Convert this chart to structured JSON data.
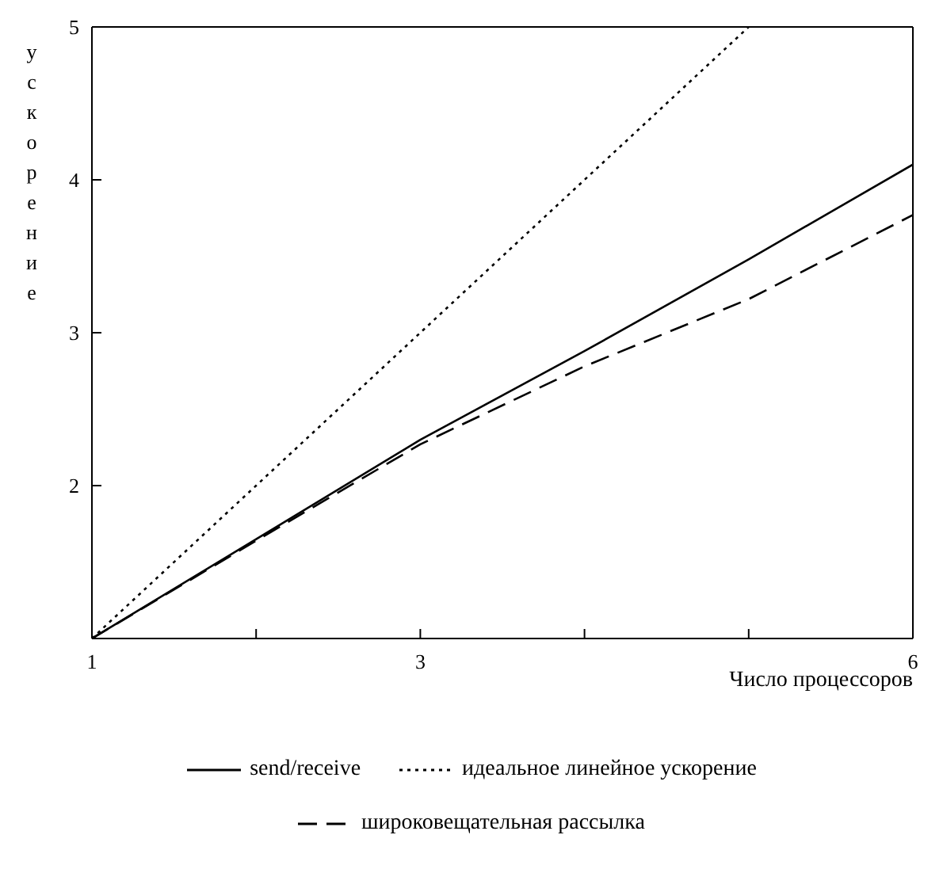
{
  "chart_data": {
    "type": "line",
    "xlabel": "Число процессоров",
    "ylabel": "ускорение",
    "x": [
      1,
      2,
      3,
      4,
      5,
      6
    ],
    "xlim": [
      1,
      6
    ],
    "ylim": [
      1,
      5
    ],
    "xticks": [
      1,
      {
        "value": 2,
        "label": null
      },
      3,
      {
        "value": 4,
        "label": null
      },
      {
        "value": 5,
        "label": null
      },
      6
    ],
    "yticks": [
      {
        "value": 1,
        "label": null
      },
      2,
      3,
      4,
      5
    ],
    "grid": false,
    "legend": "bottom",
    "marker": "none",
    "series": [
      {
        "name": "send/receive",
        "color": "#000000",
        "line_style": "solid",
        "values": [
          1,
          1.65,
          2.3,
          2.88,
          3.48,
          4.1
        ]
      },
      {
        "name": "идеальное линейное ускорение",
        "color": "#000000",
        "line_style": "dotted",
        "x": [
          1,
          2,
          3,
          4,
          5
        ],
        "values": [
          1,
          2,
          3,
          4,
          5
        ]
      },
      {
        "name": "широковещательная рассылка",
        "color": "#000000",
        "line_style": "dashed",
        "values": [
          1,
          1.64,
          2.27,
          2.78,
          3.22,
          3.77
        ]
      }
    ]
  }
}
